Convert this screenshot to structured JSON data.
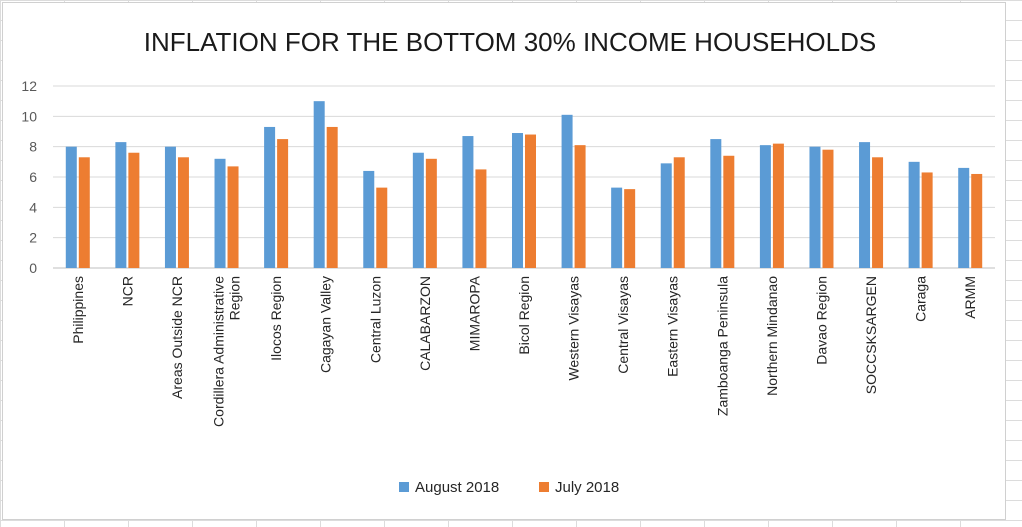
{
  "chart_data": {
    "type": "bar",
    "title": "INFLATION FOR THE BOTTOM 30% INCOME HOUSEHOLDS",
    "xlabel": "",
    "ylabel": "",
    "ylim": [
      0,
      12
    ],
    "yticks": [
      0,
      2,
      4,
      6,
      8,
      10,
      12
    ],
    "grid": true,
    "legend_position": "bottom",
    "categories": [
      "Philippines",
      "NCR",
      "Areas Outside NCR",
      "Cordillera Administrative Region",
      "Ilocos Region",
      "Cagayan Valley",
      "Central Luzon",
      "CALABARZON",
      "MIMAROPA",
      "Bicol Region",
      "Western Visayas",
      "Central Visayas",
      "Eastern Visayas",
      "Zamboanga Peninsula",
      "Northern Mindanao",
      "Davao Region",
      "SOCCSKSARGEN",
      "Caraga",
      "ARMM"
    ],
    "category_lines": [
      [
        "Philippines"
      ],
      [
        "NCR"
      ],
      [
        "Areas Outside NCR"
      ],
      [
        "Cordillera Administrative",
        "Region"
      ],
      [
        "Ilocos Region"
      ],
      [
        "Cagayan Valley"
      ],
      [
        "Central Luzon"
      ],
      [
        "CALABARZON"
      ],
      [
        "MIMAROPA"
      ],
      [
        "Bicol Region"
      ],
      [
        "Western Visayas"
      ],
      [
        "Central Visayas"
      ],
      [
        "Eastern Visayas"
      ],
      [
        "Zamboanga Peninsula"
      ],
      [
        "Northern Mindanao"
      ],
      [
        "Davao Region"
      ],
      [
        "SOCCSKSARGEN"
      ],
      [
        "Caraga"
      ],
      [
        "ARMM"
      ]
    ],
    "series": [
      {
        "name": "August 2018",
        "color": "#5B9BD5",
        "values": [
          8.0,
          8.3,
          8.0,
          7.2,
          9.3,
          11.0,
          6.4,
          7.6,
          8.7,
          8.9,
          10.1,
          5.3,
          6.9,
          8.5,
          8.1,
          8.0,
          8.3,
          7.0,
          6.6
        ]
      },
      {
        "name": "July 2018",
        "color": "#ED7D31",
        "values": [
          7.3,
          7.6,
          7.3,
          6.7,
          8.5,
          9.3,
          5.3,
          7.2,
          6.5,
          8.8,
          8.1,
          5.2,
          7.3,
          7.4,
          8.2,
          7.8,
          7.3,
          6.3,
          6.2
        ]
      }
    ]
  }
}
